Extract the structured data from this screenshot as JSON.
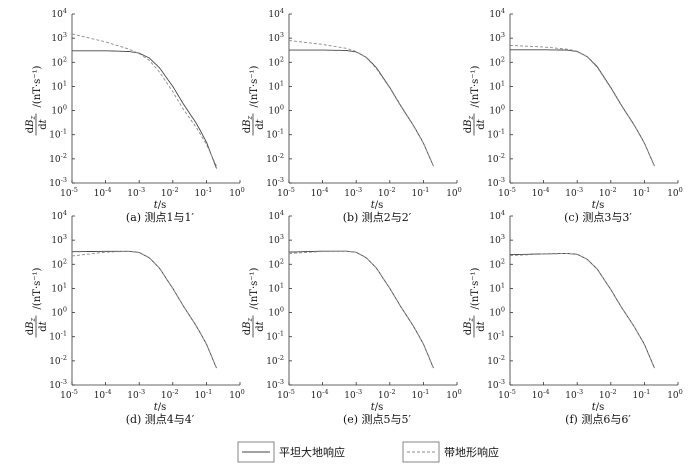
{
  "chart_data": [
    {
      "type": "line",
      "panel": "a",
      "caption": "(a) 测点1与1′",
      "xlabel": "t/s",
      "ylabel": "dBz/dt/(nT·s⁻¹)",
      "xscale": "log",
      "yscale": "log",
      "xlim": [
        1e-05,
        1
      ],
      "ylim": [
        0.001,
        10000.0
      ],
      "series": [
        {
          "name": "平坦大地响应",
          "style": "solid",
          "x": [
            1e-05,
            0.0001,
            0.0005,
            0.001,
            0.002,
            0.004,
            0.01,
            0.02,
            0.05,
            0.1,
            0.2
          ],
          "y": [
            300,
            300,
            280,
            240,
            150,
            60,
            10,
            2,
            0.3,
            0.05,
            0.004
          ]
        },
        {
          "name": "带地形响应",
          "style": "dashed",
          "x": [
            1e-05,
            0.0001,
            0.0005,
            0.001,
            0.002,
            0.004,
            0.01,
            0.02,
            0.05,
            0.1,
            0.2
          ],
          "y": [
            1500,
            700,
            350,
            230,
            120,
            40,
            6,
            1.2,
            0.2,
            0.04,
            0.005
          ]
        }
      ]
    },
    {
      "type": "line",
      "panel": "b",
      "caption": "(b) 测点2与2′",
      "xlabel": "t/s",
      "ylabel": "dBz/dt/(nT·s⁻¹)",
      "xscale": "log",
      "yscale": "log",
      "xlim": [
        1e-05,
        1
      ],
      "ylim": [
        0.001,
        10000.0
      ],
      "series": [
        {
          "name": "平坦大地响应",
          "style": "solid",
          "x": [
            1e-05,
            0.0001,
            0.0005,
            0.001,
            0.002,
            0.004,
            0.01,
            0.02,
            0.05,
            0.1,
            0.2
          ],
          "y": [
            320,
            320,
            310,
            270,
            160,
            60,
            9,
            1.8,
            0.25,
            0.045,
            0.005
          ]
        },
        {
          "name": "带地形响应",
          "style": "dashed",
          "x": [
            1e-05,
            0.0001,
            0.0005,
            0.001,
            0.002,
            0.004,
            0.01,
            0.02,
            0.05,
            0.1,
            0.2
          ],
          "y": [
            800,
            550,
            380,
            280,
            155,
            55,
            8.5,
            1.7,
            0.24,
            0.044,
            0.005
          ]
        }
      ]
    },
    {
      "type": "line",
      "panel": "c",
      "caption": "(c) 测点3与3′",
      "xlabel": "t/s",
      "ylabel": "dBz/dt/(nT·s⁻¹)",
      "xscale": "log",
      "yscale": "log",
      "xlim": [
        1e-05,
        1
      ],
      "ylim": [
        0.001,
        10000.0
      ],
      "series": [
        {
          "name": "平坦大地响应",
          "style": "solid",
          "x": [
            1e-05,
            0.0001,
            0.0005,
            0.001,
            0.002,
            0.004,
            0.01,
            0.02,
            0.05,
            0.1,
            0.2
          ],
          "y": [
            330,
            330,
            320,
            280,
            170,
            65,
            9,
            1.8,
            0.25,
            0.045,
            0.005
          ]
        },
        {
          "name": "带地形响应",
          "style": "dashed",
          "x": [
            1e-05,
            0.0001,
            0.0005,
            0.001,
            0.002,
            0.004,
            0.01,
            0.02,
            0.05,
            0.1,
            0.2
          ],
          "y": [
            500,
            430,
            350,
            290,
            165,
            60,
            8.5,
            1.7,
            0.24,
            0.044,
            0.005
          ]
        }
      ]
    },
    {
      "type": "line",
      "panel": "d",
      "caption": "(d) 测点4与4′",
      "xlabel": "t/s",
      "ylabel": "dBz/dt/(nT·s⁻¹)",
      "xscale": "log",
      "yscale": "log",
      "xlim": [
        1e-05,
        1
      ],
      "ylim": [
        0.001,
        10000.0
      ],
      "series": [
        {
          "name": "平坦大地响应",
          "style": "solid",
          "x": [
            1e-05,
            0.0001,
            0.0005,
            0.001,
            0.002,
            0.004,
            0.01,
            0.02,
            0.05,
            0.1,
            0.2
          ],
          "y": [
            330,
            345,
            345,
            310,
            185,
            70,
            10,
            2,
            0.28,
            0.05,
            0.005
          ]
        },
        {
          "name": "带地形响应",
          "style": "dashed",
          "x": [
            1e-05,
            0.0001,
            0.0005,
            0.001,
            0.002,
            0.004,
            0.01,
            0.02,
            0.05,
            0.1,
            0.2
          ],
          "y": [
            220,
            320,
            345,
            310,
            185,
            70,
            10,
            2,
            0.28,
            0.05,
            0.005
          ]
        }
      ]
    },
    {
      "type": "line",
      "panel": "e",
      "caption": "(e) 测点5与5′",
      "xlabel": "t/s",
      "ylabel": "dBz/dt/(nT·s⁻¹)",
      "xscale": "log",
      "yscale": "log",
      "xlim": [
        1e-05,
        1
      ],
      "ylim": [
        0.001,
        10000.0
      ],
      "series": [
        {
          "name": "平坦大地响应",
          "style": "solid",
          "x": [
            1e-05,
            0.0001,
            0.0005,
            0.001,
            0.002,
            0.004,
            0.01,
            0.02,
            0.05,
            0.1,
            0.2
          ],
          "y": [
            320,
            350,
            350,
            315,
            185,
            70,
            10,
            2,
            0.28,
            0.05,
            0.005
          ]
        },
        {
          "name": "带地形响应",
          "style": "dashed",
          "x": [
            1e-05,
            0.0001,
            0.0005,
            0.001,
            0.002,
            0.004,
            0.01,
            0.02,
            0.05,
            0.1,
            0.2
          ],
          "y": [
            280,
            340,
            350,
            315,
            185,
            70,
            10,
            2,
            0.28,
            0.05,
            0.005
          ]
        }
      ]
    },
    {
      "type": "line",
      "panel": "f",
      "caption": "(f) 测点6与6′",
      "xlabel": "t/s",
      "ylabel": "dBz/dt/(nT·s⁻¹)",
      "xscale": "log",
      "yscale": "log",
      "xlim": [
        1e-05,
        1
      ],
      "ylim": [
        0.001,
        10000.0
      ],
      "series": [
        {
          "name": "平坦大地响应",
          "style": "solid",
          "x": [
            1e-05,
            0.0001,
            0.0005,
            0.001,
            0.002,
            0.004,
            0.01,
            0.02,
            0.05,
            0.1,
            0.2
          ],
          "y": [
            250,
            270,
            280,
            260,
            160,
            62,
            9,
            1.8,
            0.26,
            0.048,
            0.005
          ]
        },
        {
          "name": "带地形响应",
          "style": "dashed",
          "x": [
            1e-05,
            0.0001,
            0.0005,
            0.001,
            0.002,
            0.004,
            0.01,
            0.02,
            0.05,
            0.1,
            0.2
          ],
          "y": [
            230,
            265,
            280,
            260,
            160,
            62,
            9,
            1.8,
            0.26,
            0.048,
            0.005
          ]
        }
      ]
    }
  ],
  "legend": {
    "solid_label": "平坦大地响应",
    "dashed_label": "带地形响应"
  },
  "colors": {
    "solid": "#444444",
    "dashed": "#8a8a8a",
    "axis": "#333333"
  }
}
